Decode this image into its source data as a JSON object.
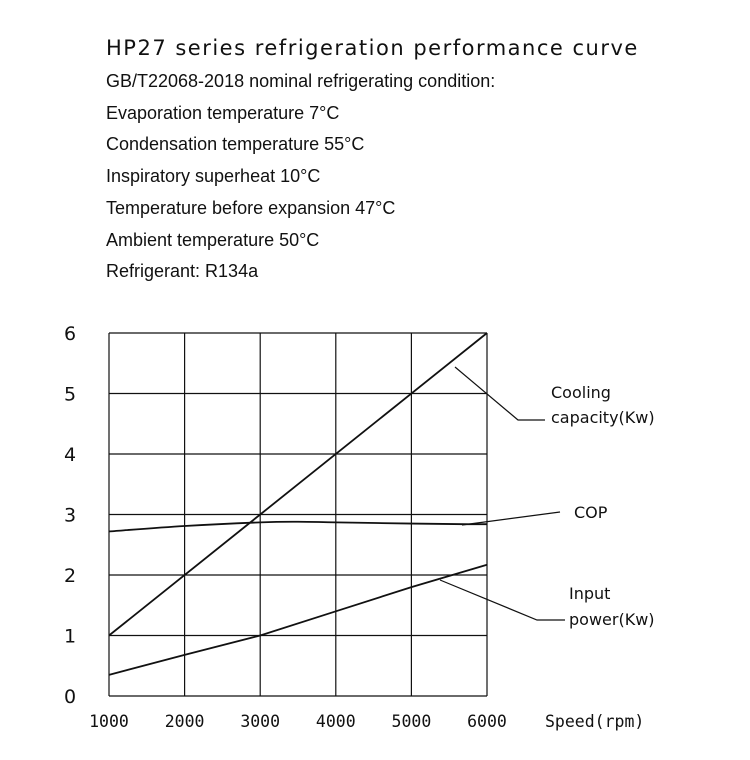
{
  "header": {
    "title": "HP27 series refrigeration performance curve",
    "conditions": [
      "GB/T22068-2018 nominal refrigerating condition:",
      "Evaporation temperature 7°C",
      "Condensation temperature 55°C",
      "Inspiratory superheat 10°C",
      "Temperature before expansion 47°C",
      "Ambient temperature 50°C",
      "Refrigerant: R134a"
    ]
  },
  "chart_data": {
    "type": "line",
    "xlabel": "Speed(rpm)",
    "ylabel": "",
    "xlim": [
      1000,
      6000
    ],
    "ylim": [
      0,
      6
    ],
    "x_ticks": [
      "1000",
      "2000",
      "3000",
      "4000",
      "5000",
      "6000"
    ],
    "y_ticks": [
      "0",
      "1",
      "2",
      "3",
      "4",
      "5",
      "6"
    ],
    "grid": true,
    "series": [
      {
        "name": "Cooling capacity(Kw)",
        "label_lines": [
          "Cooling",
          "capacity(Kw)"
        ],
        "x": [
          1000,
          6000
        ],
        "y": [
          1.0,
          6.0
        ]
      },
      {
        "name": "COP",
        "label_lines": [
          "COP"
        ],
        "x": [
          1000,
          2000,
          3000,
          3500,
          4000,
          5000,
          5700,
          6000
        ],
        "y": [
          2.72,
          2.81,
          2.87,
          2.88,
          2.87,
          2.85,
          2.84,
          2.84
        ]
      },
      {
        "name": "Input power(Kw)",
        "label_lines": [
          "Input",
          "power(Kw)"
        ],
        "x": [
          1000,
          2000,
          3000,
          4000,
          5000,
          6000
        ],
        "y": [
          0.35,
          0.68,
          1.0,
          1.4,
          1.8,
          2.17
        ]
      }
    ]
  }
}
